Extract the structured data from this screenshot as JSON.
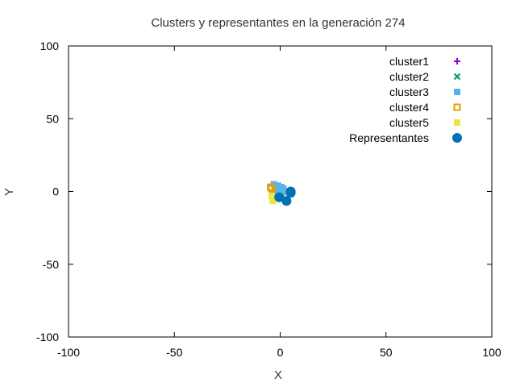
{
  "chart_data": {
    "type": "scatter",
    "title": "Clusters y representantes en la generación 274",
    "xlabel": "X",
    "ylabel": "Y",
    "xlim": [
      -100,
      100
    ],
    "ylim": [
      -100,
      100
    ],
    "xticks": [
      -100,
      -50,
      0,
      50,
      100
    ],
    "yticks": [
      -100,
      -50,
      0,
      50,
      100
    ],
    "grid": false,
    "legend_position": "top-right",
    "series": [
      {
        "name": "cluster1",
        "marker": "plus",
        "color": "#9400d3",
        "points": []
      },
      {
        "name": "cluster2",
        "marker": "cross",
        "color": "#009e73",
        "points": []
      },
      {
        "name": "cluster3",
        "marker": "square",
        "color": "#56b4e9",
        "points": [
          [
            -3,
            5
          ],
          [
            -1,
            4
          ],
          [
            0.5,
            3
          ],
          [
            1.5,
            2
          ],
          [
            -2.5,
            1
          ],
          [
            -1,
            0.5
          ],
          [
            0,
            1.5
          ],
          [
            -3.5,
            -1
          ],
          [
            -0.5,
            -2
          ],
          [
            2,
            0
          ],
          [
            1,
            -1
          ],
          [
            -2,
            2.5
          ]
        ]
      },
      {
        "name": "cluster4",
        "marker": "open-square",
        "color": "#e69f00",
        "points": [
          [
            -4.5,
            3
          ],
          [
            -4,
            2
          ]
        ]
      },
      {
        "name": "cluster5",
        "marker": "square",
        "color": "#f0e442",
        "points": [
          [
            -3.5,
            -6.5
          ],
          [
            -4,
            -3
          ]
        ]
      },
      {
        "name": "Representantes",
        "marker": "circle",
        "color": "#0072b2",
        "points": [
          [
            5,
            0
          ],
          [
            -0.5,
            -4
          ],
          [
            3,
            -6.5
          ],
          [
            5,
            -1
          ]
        ]
      }
    ]
  }
}
